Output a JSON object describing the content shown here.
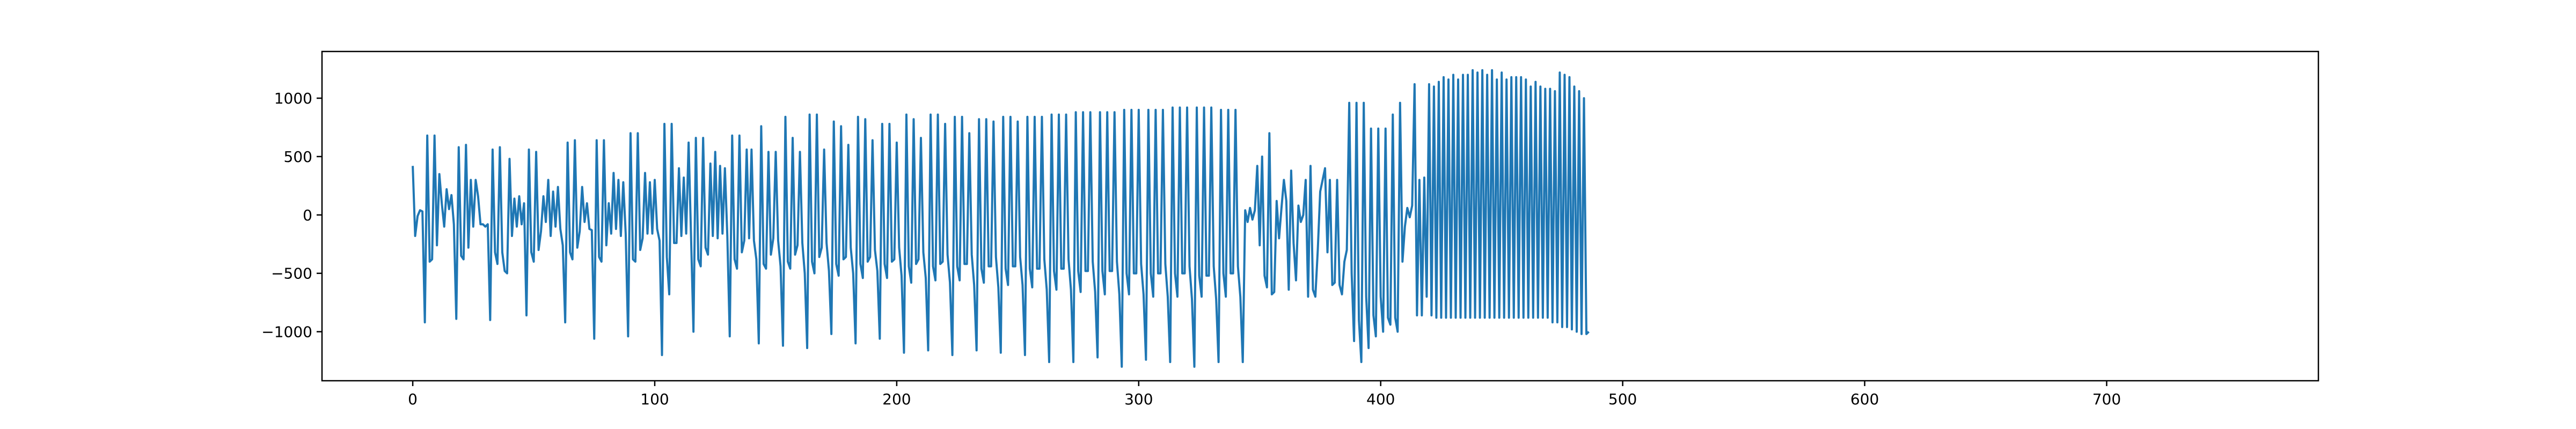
{
  "chart_data": {
    "type": "line",
    "title": "",
    "xlabel": "",
    "ylabel": "",
    "xlim": [
      -37.5,
      787.5
    ],
    "ylim": [
      -1420,
      1400
    ],
    "xticks": [
      0,
      100,
      200,
      300,
      400,
      500,
      600,
      700
    ],
    "yticks": [
      -1000,
      -500,
      0,
      500,
      1000
    ],
    "xtick_labels": [
      "0",
      "100",
      "200",
      "300",
      "400",
      "500",
      "600",
      "700"
    ],
    "ytick_labels": [
      "−1000",
      "−500",
      "0",
      "500",
      "1000"
    ],
    "grid": false,
    "legend": "none",
    "color": "#1f77b4",
    "series": [
      {
        "name": "",
        "x_start": 0,
        "x_step": 1,
        "values": [
          420,
          -180,
          -10,
          40,
          30,
          -920,
          680,
          -400,
          -380,
          680,
          -260,
          350,
          100,
          -100,
          220,
          50,
          170,
          -80,
          -890,
          580,
          -350,
          -380,
          600,
          -280,
          300,
          -100,
          300,
          160,
          -80,
          -80,
          -100,
          -80,
          -900,
          560,
          -320,
          -420,
          580,
          -320,
          -480,
          -500,
          480,
          -180,
          140,
          -100,
          160,
          -80,
          100,
          -860,
          560,
          -320,
          -400,
          540,
          -300,
          -140,
          160,
          -60,
          300,
          -180,
          200,
          -100,
          240,
          -120,
          -260,
          -920,
          620,
          -320,
          -380,
          640,
          -280,
          -140,
          240,
          -60,
          100,
          -120,
          -130,
          -1060,
          640,
          -360,
          -400,
          640,
          -260,
          100,
          -160,
          360,
          -120,
          300,
          -180,
          280,
          -160,
          -1040,
          700,
          -380,
          -400,
          700,
          -300,
          -200,
          360,
          -160,
          280,
          -160,
          300,
          -120,
          -220,
          -1200,
          780,
          -360,
          -680,
          780,
          -240,
          -240,
          400,
          -180,
          320,
          -160,
          620,
          -180,
          -1000,
          660,
          -380,
          -440,
          660,
          -280,
          -340,
          440,
          -180,
          540,
          -200,
          420,
          -160,
          400,
          -180,
          -1040,
          680,
          -380,
          -460,
          680,
          -320,
          -220,
          560,
          -200,
          560,
          -220,
          -380,
          -1100,
          760,
          -420,
          -460,
          540,
          -340,
          -200,
          540,
          -220,
          -440,
          -1120,
          840,
          -400,
          -460,
          660,
          -340,
          -260,
          540,
          -240,
          -500,
          -1140,
          860,
          -400,
          -500,
          860,
          -360,
          -280,
          560,
          -240,
          -480,
          -1020,
          800,
          -420,
          -520,
          760,
          -380,
          -360,
          600,
          -280,
          -500,
          -1100,
          840,
          -420,
          -540,
          820,
          -400,
          -360,
          640,
          -300,
          -480,
          -1060,
          780,
          -420,
          -540,
          780,
          -400,
          -380,
          620,
          -280,
          -520,
          -1180,
          860,
          -440,
          -580,
          820,
          -420,
          -380,
          660,
          -320,
          -540,
          -1160,
          860,
          -440,
          -560,
          860,
          -420,
          -400,
          780,
          -340,
          -580,
          -1200,
          840,
          -440,
          -560,
          840,
          -420,
          -420,
          700,
          -340,
          -600,
          -1160,
          820,
          -460,
          -580,
          820,
          -440,
          -440,
          800,
          -360,
          -620,
          -1180,
          840,
          -460,
          -600,
          840,
          -440,
          -440,
          800,
          -360,
          -600,
          -1200,
          840,
          -460,
          -620,
          840,
          -460,
          -460,
          840,
          -380,
          -640,
          -1260,
          860,
          -480,
          -640,
          860,
          -460,
          -460,
          860,
          -380,
          -640,
          -1260,
          880,
          -480,
          -660,
          880,
          -480,
          -480,
          880,
          -400,
          -660,
          -1220,
          880,
          -480,
          -680,
          880,
          -480,
          -480,
          880,
          -400,
          -680,
          -1300,
          900,
          -500,
          -680,
          900,
          -500,
          -500,
          900,
          -420,
          -680,
          -1240,
          900,
          -500,
          -700,
          900,
          -500,
          -500,
          900,
          -420,
          -700,
          -1260,
          920,
          -500,
          -700,
          920,
          -500,
          -500,
          920,
          -440,
          -720,
          -1300,
          920,
          -520,
          -700,
          920,
          -520,
          -520,
          920,
          -440,
          -720,
          -1260,
          900,
          -500,
          -700,
          900,
          -500,
          -500,
          900,
          -440,
          -700,
          -1260,
          40,
          -60,
          60,
          -40,
          40,
          420,
          -260,
          500,
          -520,
          -620,
          700,
          -680,
          -660,
          120,
          -200,
          60,
          300,
          120,
          -640,
          380,
          -240,
          -560,
          80,
          -60,
          0,
          300,
          -700,
          420,
          -640,
          -700,
          -300,
          200,
          300,
          400,
          -320,
          300,
          -600,
          -580,
          300,
          -600,
          -680,
          -400,
          -300,
          960,
          -500,
          -1080,
          960,
          -900,
          -1260,
          960,
          -700,
          -1140,
          740,
          -860,
          -1040,
          740,
          -700,
          -1000,
          740,
          -880,
          -940,
          860,
          -880,
          -1000,
          960,
          -400,
          -100,
          60,
          -20,
          80,
          1120,
          -860,
          300,
          -860,
          320,
          -700,
          1120,
          -860,
          1100,
          -880,
          1140,
          -880,
          1180,
          -880,
          1160,
          -880,
          1200,
          -880,
          1160,
          -880,
          1200,
          -880,
          1200,
          -880,
          1240,
          -880,
          1220,
          -880,
          1240,
          -880,
          1200,
          -880,
          1240,
          -880,
          1160,
          -880,
          1220,
          -880,
          1160,
          -880,
          1180,
          -880,
          1180,
          -880,
          1180,
          -880,
          1160,
          -880,
          1100,
          -880,
          1140,
          -880,
          1100,
          -880,
          1080,
          -880,
          1080,
          -920,
          1060,
          -920,
          1220,
          -960,
          1200,
          -960,
          1180,
          -980,
          1100,
          -1000,
          1060,
          -1020,
          1000,
          -1020,
          -1000
        ]
      }
    ]
  }
}
